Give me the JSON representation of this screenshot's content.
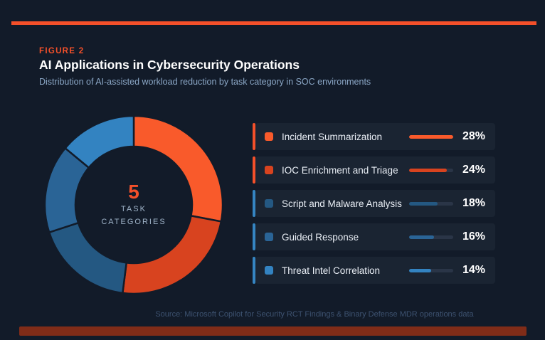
{
  "page": {
    "background": "#121B29",
    "accent_color": "#F4502A",
    "bottom_bar_color": "#802C18",
    "card_background": "#1A2432"
  },
  "header": {
    "figure_label": "FIGURE 2",
    "title": "AI Applications in Cybersecurity Operations",
    "subtitle": "Distribution of AI-assisted workload reduction by task category in SOC environments"
  },
  "chart_data": {
    "type": "pie",
    "subtype": "donut",
    "title": "AI Applications in Cybersecurity Operations",
    "categories": [
      "Incident Summarization",
      "IOC Enrichment and Triage",
      "Script and Malware Analysis",
      "Guided Response",
      "Threat Intel Correlation"
    ],
    "values": [
      28,
      24,
      18,
      16,
      14
    ],
    "unit": "%",
    "colors": [
      "#F95A2B",
      "#D8431F",
      "#245882",
      "#2A6496",
      "#3383C1"
    ],
    "accent_bar_colors": [
      "#F4502A",
      "#F4502A",
      "#3585C2",
      "#3585C2",
      "#3585C2"
    ],
    "track_color": "#2A3547",
    "legend_max_value": 28,
    "start_angle_deg": 0,
    "direction": "clockwise",
    "legend_position": "right",
    "center_value": "5",
    "center_label_line1": "TASK",
    "center_label_line2": "CATEGORIES"
  },
  "footer": {
    "source_note": "Source: Microsoft Copilot for Security RCT Findings & Binary Defense MDR operations data"
  }
}
